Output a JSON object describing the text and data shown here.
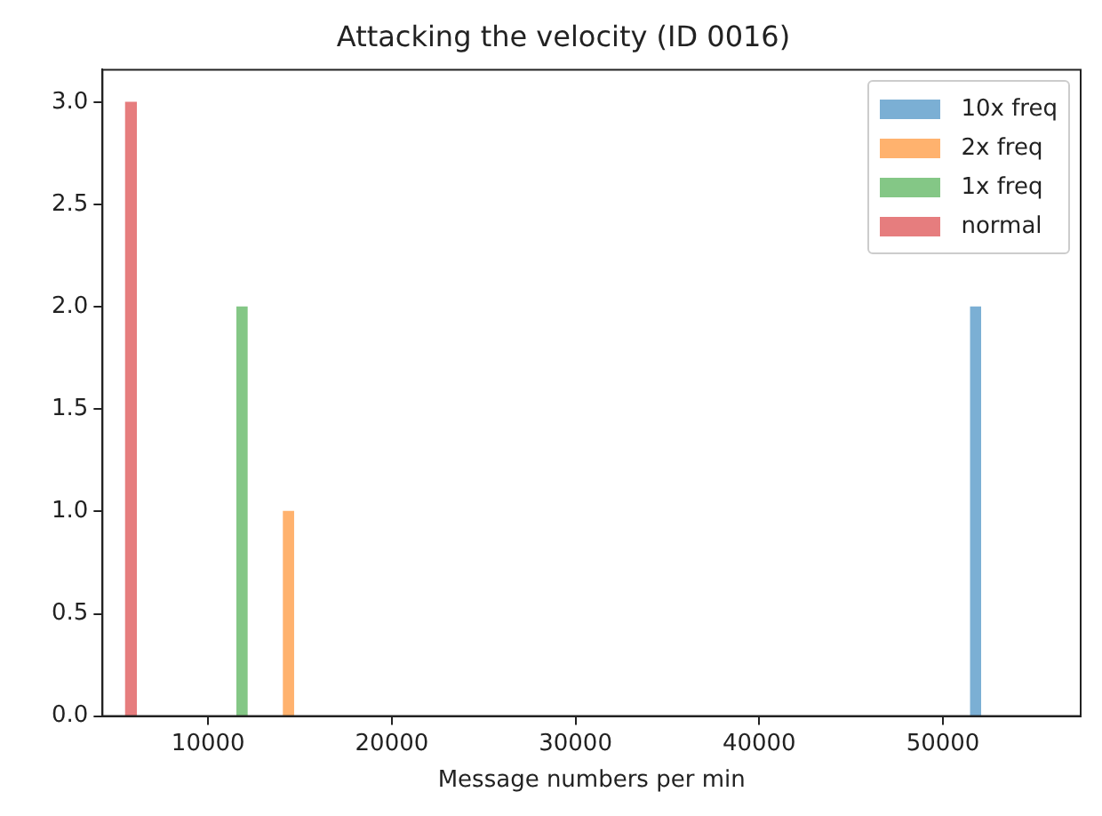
{
  "chart_data": {
    "type": "histogram",
    "title": "Attacking the velocity (ID 0016)",
    "xlabel": "Message numbers per min",
    "bins": [
      5510,
      6090,
      11570,
      12120,
      14100,
      14650,
      51510,
      52050
    ],
    "series": [
      {
        "name": "10x freq",
        "color": "#7bafd4",
        "values": [
          null,
          null,
          null,
          null,
          null,
          null,
          2
        ]
      },
      {
        "name": "2x freq",
        "color": "#ffb26e",
        "values": [
          null,
          null,
          null,
          null,
          1,
          null,
          null
        ]
      },
      {
        "name": "1x freq",
        "color": "#84c786",
        "values": [
          null,
          null,
          2,
          null,
          null,
          null,
          null
        ]
      },
      {
        "name": "normal",
        "color": "#e67d7e",
        "values": [
          3,
          null,
          null,
          null,
          null,
          null,
          null
        ]
      }
    ],
    "xlim": [
      4250,
      57500
    ],
    "xticks": [
      10000,
      20000,
      30000,
      40000,
      50000
    ],
    "ylim": [
      0,
      3.16
    ],
    "yticks": [
      {
        "value": 0,
        "label": "0.0"
      },
      {
        "value": 0.5,
        "label": "0.5"
      },
      {
        "value": 1,
        "label": "1.0"
      },
      {
        "value": 1.5,
        "label": "1.5"
      },
      {
        "value": 2,
        "label": "2.0"
      },
      {
        "value": 2.5,
        "label": "2.5"
      },
      {
        "value": 3,
        "label": "3.0"
      }
    ],
    "grid": false,
    "legend": "top right"
  }
}
